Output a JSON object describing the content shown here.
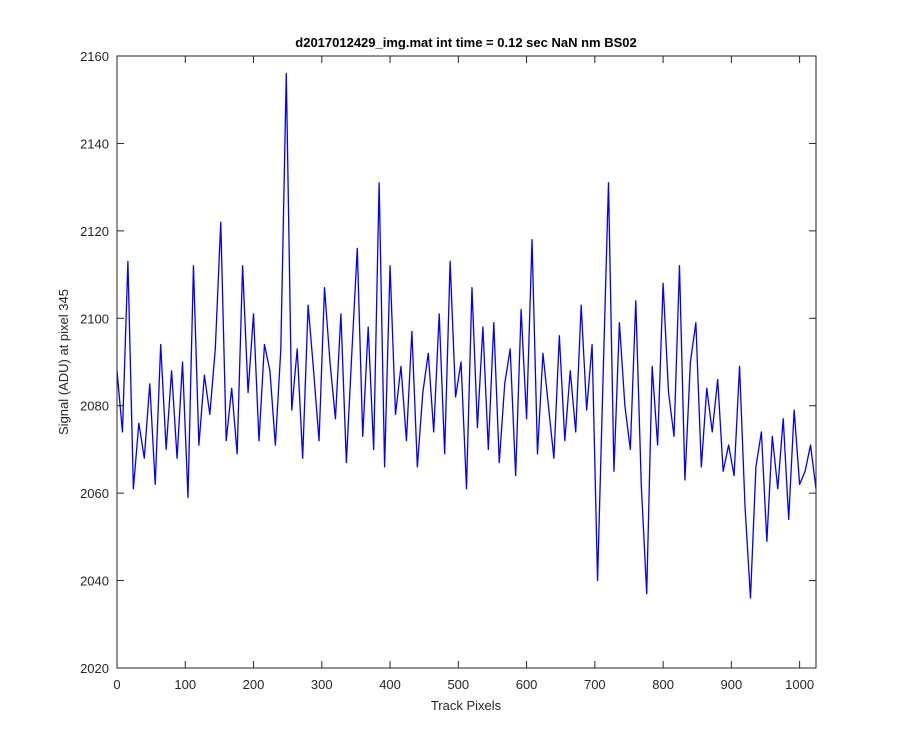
{
  "chart_data": {
    "type": "line",
    "title": "d2017012429_img.mat int time = 0.12 sec  NaN nm BS02",
    "xlabel": "Track Pixels",
    "ylabel": "Signal (ADU) at pixel 345",
    "xlim": [
      0,
      1024
    ],
    "ylim": [
      2020,
      2160
    ],
    "xticks": [
      0,
      100,
      200,
      300,
      400,
      500,
      600,
      700,
      800,
      900,
      1000
    ],
    "yticks": [
      2020,
      2040,
      2060,
      2080,
      2100,
      2120,
      2140,
      2160
    ],
    "grid": false,
    "line_color": "#0000ff",
    "axes_color": "#262626",
    "series": [
      {
        "x": [
          0,
          8,
          16,
          24,
          32,
          40,
          48,
          56,
          64,
          72,
          80,
          88,
          96,
          104,
          112,
          120,
          128,
          136,
          144,
          152,
          160,
          168,
          176,
          184,
          192,
          200,
          208,
          216,
          224,
          232,
          240,
          248,
          256,
          264,
          272,
          280,
          288,
          296,
          304,
          312,
          320,
          328,
          336,
          344,
          352,
          360,
          368,
          376,
          384,
          392,
          400,
          408,
          416,
          424,
          432,
          440,
          448,
          456,
          464,
          472,
          480,
          488,
          496,
          504,
          512,
          520,
          528,
          536,
          544,
          552,
          560,
          568,
          576,
          584,
          592,
          600,
          608,
          616,
          624,
          632,
          640,
          648,
          656,
          664,
          672,
          680,
          688,
          696,
          704,
          712,
          720,
          728,
          736,
          744,
          752,
          760,
          768,
          776,
          784,
          792,
          800,
          808,
          816,
          824,
          832,
          840,
          848,
          856,
          864,
          872,
          880,
          888,
          896,
          904,
          912,
          920,
          928,
          936,
          944,
          952,
          960,
          968,
          976,
          984,
          992,
          1000,
          1008,
          1016,
          1024
        ],
        "y": [
          2088,
          2074,
          2113,
          2061,
          2076,
          2068,
          2085,
          2062,
          2094,
          2070,
          2088,
          2068,
          2090,
          2059,
          2112,
          2071,
          2087,
          2078,
          2093,
          2122,
          2072,
          2084,
          2069,
          2112,
          2083,
          2101,
          2072,
          2094,
          2088,
          2071,
          2093,
          2156,
          2079,
          2093,
          2068,
          2103,
          2088,
          2072,
          2107,
          2090,
          2077,
          2101,
          2067,
          2092,
          2116,
          2073,
          2098,
          2070,
          2131,
          2066,
          2112,
          2078,
          2089,
          2072,
          2097,
          2066,
          2083,
          2092,
          2074,
          2101,
          2069,
          2113,
          2082,
          2090,
          2061,
          2107,
          2075,
          2098,
          2070,
          2099,
          2067,
          2085,
          2093,
          2064,
          2102,
          2077,
          2118,
          2069,
          2092,
          2080,
          2068,
          2096,
          2072,
          2088,
          2074,
          2103,
          2079,
          2094,
          2040,
          2086,
          2131,
          2065,
          2099,
          2080,
          2070,
          2104,
          2062,
          2037,
          2089,
          2071,
          2108,
          2083,
          2073,
          2112,
          2063,
          2090,
          2099,
          2066,
          2084,
          2074,
          2086,
          2065,
          2071,
          2064,
          2089,
          2057,
          2036,
          2066,
          2074,
          2049,
          2073,
          2061,
          2077,
          2054,
          2079,
          2062,
          2065,
          2071,
          2061
        ]
      }
    ]
  }
}
